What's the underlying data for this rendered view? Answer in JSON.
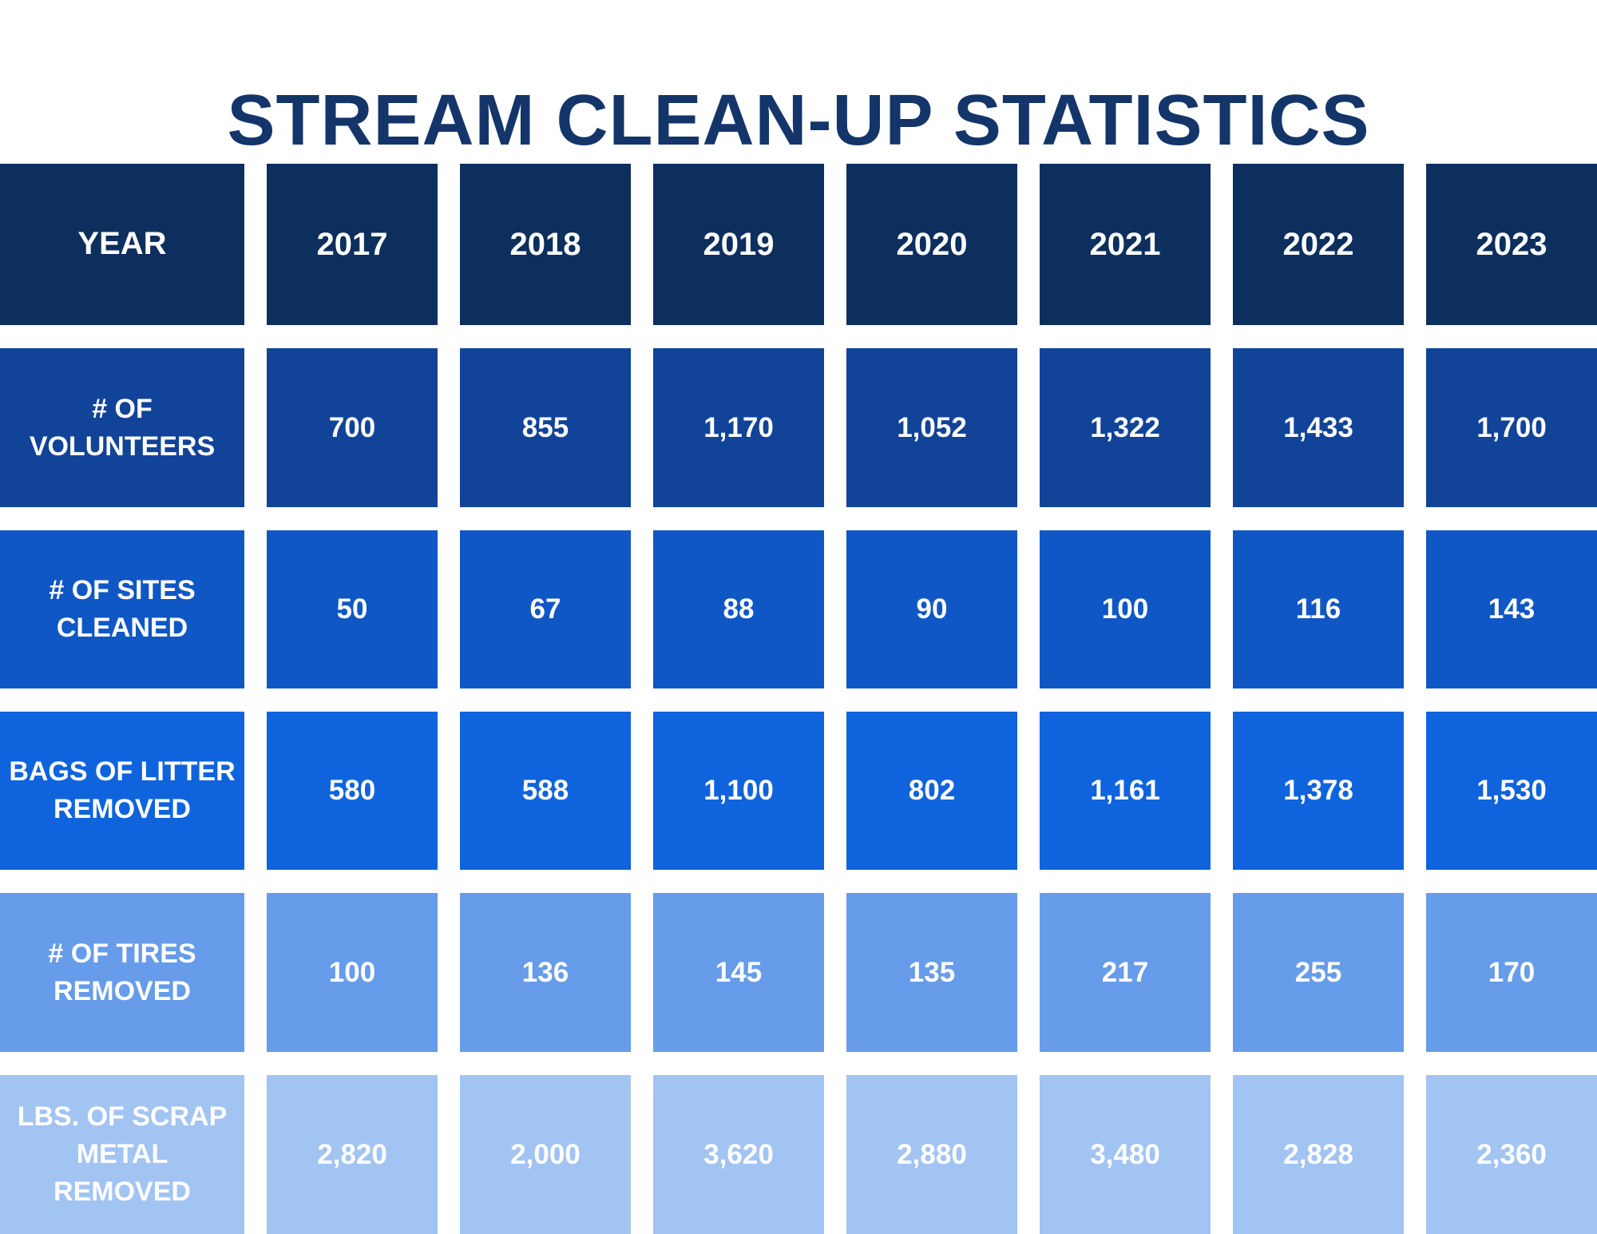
{
  "title": "STREAM CLEAN-UP STATISTICS",
  "colors": {
    "background": "#ffffff",
    "title_text": "#133569",
    "cell_text": "#ffffff"
  },
  "table": {
    "header": {
      "color": "#0d2f5e",
      "label": "YEAR",
      "years": [
        "2017",
        "2018",
        "2019",
        "2020",
        "2021",
        "2022",
        "2023"
      ]
    },
    "rows": [
      {
        "label": "# OF\nVOLUNTEERS",
        "color": "#114399",
        "values": [
          "700",
          "855",
          "1,170",
          "1,052",
          "1,322",
          "1,433",
          "1,700"
        ]
      },
      {
        "label": "# OF SITES\nCLEANED",
        "color": "#1057c6",
        "values": [
          "50",
          "67",
          "88",
          "90",
          "100",
          "116",
          "143"
        ]
      },
      {
        "label": "BAGS OF LITTER\nREMOVED",
        "color": "#0f64de",
        "values": [
          "580",
          "588",
          "1,100",
          "802",
          "1,161",
          "1,378",
          "1,530"
        ]
      },
      {
        "label": "# OF TIRES\nREMOVED",
        "color": "#669ce9",
        "values": [
          "100",
          "136",
          "145",
          "135",
          "217",
          "255",
          "170"
        ]
      },
      {
        "label": "LBS. OF SCRAP\nMETAL\nREMOVED",
        "color": "#a2c4f3",
        "values": [
          "2,820",
          "2,000",
          "3,620",
          "2,880",
          "3,480",
          "2,828",
          "2,360"
        ]
      }
    ]
  },
  "chart_data": {
    "type": "table",
    "title": "STREAM CLEAN-UP STATISTICS",
    "columns": [
      "YEAR",
      "2017",
      "2018",
      "2019",
      "2020",
      "2021",
      "2022",
      "2023"
    ],
    "rows": [
      {
        "label": "# OF VOLUNTEERS",
        "values": [
          700,
          855,
          1170,
          1052,
          1322,
          1433,
          1700
        ]
      },
      {
        "label": "# OF SITES CLEANED",
        "values": [
          50,
          67,
          88,
          90,
          100,
          116,
          143
        ]
      },
      {
        "label": "BAGS OF LITTER REMOVED",
        "values": [
          580,
          588,
          1100,
          802,
          1161,
          1378,
          1530
        ]
      },
      {
        "label": "# OF TIRES REMOVED",
        "values": [
          100,
          136,
          145,
          135,
          217,
          255,
          170
        ]
      },
      {
        "label": "LBS. OF SCRAP METAL REMOVED",
        "values": [
          2820,
          2000,
          3620,
          2880,
          3480,
          2828,
          2360
        ]
      }
    ]
  }
}
